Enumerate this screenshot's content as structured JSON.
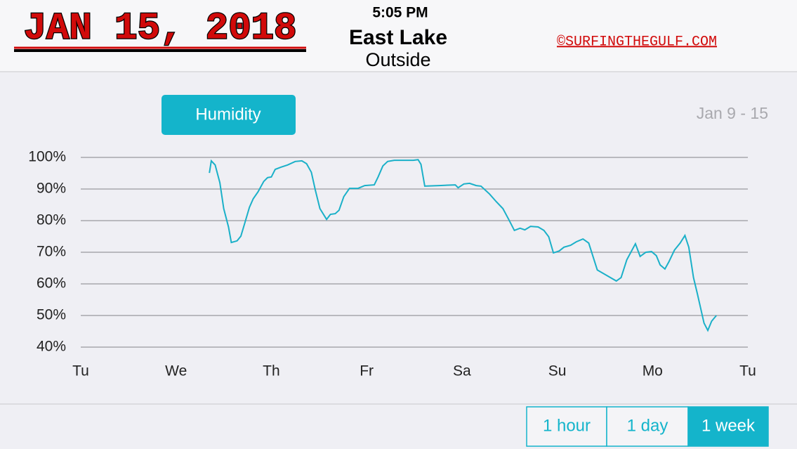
{
  "header": {
    "date": "JAN 15, 2018",
    "time": "5:05 PM",
    "location": "East Lake",
    "sublocation": "Outside",
    "credit": "©SURFINGTHEGULF.COM"
  },
  "date_range": "Jan 9 - 15",
  "range_buttons": [
    "1 hour",
    "1 day",
    "1 week"
  ],
  "selected_button": 2,
  "chart_data": {
    "type": "line",
    "x": [
      1.35,
      1.37,
      1.41,
      1.46,
      1.5,
      1.55,
      1.58,
      1.64,
      1.68,
      1.72,
      1.77,
      1.81,
      1.86,
      1.92,
      1.96,
      2.0,
      2.04,
      2.1,
      2.17,
      2.25,
      2.32,
      2.37,
      2.42,
      2.46,
      2.51,
      2.58,
      2.62,
      2.67,
      2.71,
      2.76,
      2.82,
      2.91,
      2.98,
      3.08,
      3.12,
      3.17,
      3.22,
      3.29,
      3.39,
      3.49,
      3.54,
      3.57,
      3.61,
      3.76,
      3.93,
      3.96,
      4.02,
      4.08,
      4.15,
      4.2,
      4.29,
      4.36,
      4.43,
      4.49,
      4.55,
      4.61,
      4.66,
      4.72,
      4.8,
      4.86,
      4.91,
      4.96,
      5.02,
      5.07,
      5.14,
      5.2,
      5.27,
      5.33,
      5.42,
      5.62,
      5.67,
      5.73,
      5.82,
      5.87,
      5.93,
      5.99,
      6.04,
      6.08,
      6.13,
      6.17,
      6.23,
      6.29,
      6.34,
      6.38,
      6.43,
      6.47,
      6.54,
      6.58,
      6.62,
      6.67
    ],
    "series": [
      {
        "name": "Humidity",
        "color": "#1ab0c8",
        "values": [
          95.1,
          98.9,
          97.6,
          92,
          83.8,
          78,
          73.1,
          73.6,
          75.1,
          79.1,
          84.2,
          86.9,
          89.1,
          92.4,
          93.6,
          93.8,
          96.2,
          96.9,
          97.6,
          98.7,
          98.9,
          98,
          95.3,
          89.8,
          83.8,
          80.4,
          82,
          82.2,
          83.3,
          87.6,
          90.2,
          90.2,
          91.1,
          91.3,
          93.8,
          97.3,
          98.7,
          99.1,
          99.1,
          99.1,
          99.3,
          97.8,
          90.9,
          91.1,
          91.3,
          90.4,
          91.6,
          91.8,
          91.1,
          90.9,
          88.4,
          86,
          83.8,
          80.4,
          76.9,
          77.6,
          77.1,
          78.2,
          78,
          76.9,
          74.9,
          69.8,
          70.4,
          71.6,
          72.2,
          73.3,
          74.2,
          72.9,
          64.4,
          60.9,
          62,
          67.6,
          72.7,
          68.7,
          70,
          70.2,
          68.9,
          66,
          64.7,
          66.9,
          70.7,
          72.9,
          75.3,
          71.6,
          62,
          56.9,
          47.6,
          45.3,
          48.2,
          50
        ]
      }
    ],
    "xlim": [
      0,
      7
    ],
    "xticks": [
      {
        "value": 0,
        "label": "Tu"
      },
      {
        "value": 1,
        "label": "We"
      },
      {
        "value": 2,
        "label": "Th"
      },
      {
        "value": 3,
        "label": "Fr"
      },
      {
        "value": 4,
        "label": "Sa"
      },
      {
        "value": 5,
        "label": "Su"
      },
      {
        "value": 6,
        "label": "Mo"
      },
      {
        "value": 7,
        "label": "Tu"
      }
    ],
    "ylim": [
      40,
      100
    ],
    "yticks": [
      {
        "value": 40,
        "label": "40%"
      },
      {
        "value": 50,
        "label": "50%"
      },
      {
        "value": 60,
        "label": "60%"
      },
      {
        "value": 70,
        "label": "70%"
      },
      {
        "value": 80,
        "label": "80%"
      },
      {
        "value": 90,
        "label": "90%"
      },
      {
        "value": 100,
        "label": "100%"
      }
    ],
    "grid": true
  }
}
